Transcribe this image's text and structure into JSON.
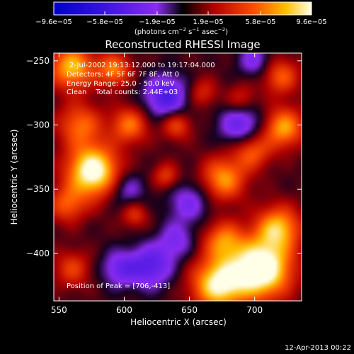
{
  "chart_data": {
    "type": "heatmap",
    "title": "Reconstructed RHESSI Image",
    "xlabel": "Heliocentric X (arcsec)",
    "ylabel": "Heliocentric Y (arcsec)",
    "xlim": [
      546,
      736
    ],
    "ylim": [
      -437,
      -244
    ],
    "x_ticks": [
      550,
      600,
      650,
      700
    ],
    "y_ticks": [
      -250,
      -300,
      -350,
      -400
    ],
    "x_tick_labels": [
      "550",
      "600",
      "650",
      "700"
    ],
    "y_tick_labels": [
      "−250",
      "−300",
      "−350",
      "−400"
    ],
    "colorbar": {
      "min": -9.6e-05,
      "max": 9.6e-05,
      "tick_values": [
        -9.6e-05,
        -5.8e-05,
        -1.9e-05,
        1.9e-05,
        5.8e-05,
        9.6e-05
      ],
      "tick_labels": [
        "−9.6e−05",
        "−5.8e−05",
        "−1.9e−05",
        "1.9e−05",
        "5.8e−05",
        "9.6e−05"
      ],
      "units_main": "(photons cm",
      "units_exp1": "−2",
      "units_mid": " s",
      "units_exp2": "−1",
      "units_mid2": " asec",
      "units_exp3": "−2",
      "units_end": ")"
    },
    "annotations": {
      "time_range": "2-Jul-2002 19:13:12.000 to 19:17:04.000",
      "detectors": "Detectors: 4F 5F 6F 7F 8F, Att 0",
      "energy": "Energy Range: 25.0 - 50.0 keV",
      "clean": "Clean    Total counts: 2.44E+03",
      "peak": "Position of Peak = [706,-413]"
    },
    "peak_position": [
      706,
      -413
    ],
    "sources": [
      {
        "x": 576,
        "y": -336,
        "amp": 1.6,
        "sigma": 14
      },
      {
        "x": 560,
        "y": -255,
        "amp": 1.15,
        "sigma": 12
      },
      {
        "x": 592,
        "y": -257,
        "amp": 0.9,
        "sigma": 9
      },
      {
        "x": 604,
        "y": -300,
        "amp": 0.85,
        "sigma": 10
      },
      {
        "x": 566,
        "y": -300,
        "amp": 0.8,
        "sigma": 12
      },
      {
        "x": 556,
        "y": -362,
        "amp": 0.7,
        "sigma": 10
      },
      {
        "x": 560,
        "y": -412,
        "amp": 0.6,
        "sigma": 10
      },
      {
        "x": 705,
        "y": -412,
        "amp": 1.75,
        "sigma": 16
      },
      {
        "x": 672,
        "y": -424,
        "amp": 1.4,
        "sigma": 14
      },
      {
        "x": 718,
        "y": -380,
        "amp": 1.1,
        "sigma": 12
      },
      {
        "x": 676,
        "y": -390,
        "amp": 0.85,
        "sigma": 11
      },
      {
        "x": 676,
        "y": -342,
        "amp": 1.0,
        "sigma": 12
      },
      {
        "x": 722,
        "y": -302,
        "amp": 1.05,
        "sigma": 11
      },
      {
        "x": 698,
        "y": -320,
        "amp": 0.8,
        "sigma": 10
      },
      {
        "x": 720,
        "y": -262,
        "amp": 0.75,
        "sigma": 10
      },
      {
        "x": 640,
        "y": -300,
        "amp": 0.7,
        "sigma": 8
      },
      {
        "x": 632,
        "y": -340,
        "amp": 0.6,
        "sigma": 7
      },
      {
        "x": 660,
        "y": -275,
        "amp": 0.5,
        "sigma": 8
      },
      {
        "x": 608,
        "y": -370,
        "amp": 0.55,
        "sigma": 7
      },
      {
        "x": 690,
        "y": -280,
        "amp": 0.5,
        "sigma": 8
      },
      {
        "x": 632,
        "y": -278,
        "amp": -0.9,
        "sigma": 12
      },
      {
        "x": 620,
        "y": -410,
        "amp": -0.8,
        "sigma": 12
      },
      {
        "x": 596,
        "y": -412,
        "amp": -0.6,
        "sigma": 10
      },
      {
        "x": 690,
        "y": -300,
        "amp": -0.75,
        "sigma": 12
      },
      {
        "x": 650,
        "y": -360,
        "amp": -0.55,
        "sigma": 12
      },
      {
        "x": 602,
        "y": -350,
        "amp": -0.5,
        "sigma": 10
      },
      {
        "x": 700,
        "y": -250,
        "amp": -0.55,
        "sigma": 9
      },
      {
        "x": 640,
        "y": -390,
        "amp": -0.5,
        "sigma": 10
      }
    ]
  },
  "footer": {
    "timestamp": "12-Apr-2013 00:22"
  }
}
